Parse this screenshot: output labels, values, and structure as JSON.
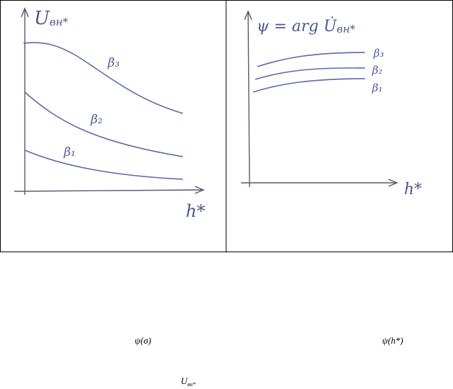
{
  "panels": [
    {
      "title": {
        "symbol": "U",
        "subscript": "вн*"
      },
      "curve_labels": [
        "β₃",
        "β₂",
        "β₁"
      ],
      "x_label": "h*"
    },
    {
      "title": {
        "symbol": "ψ = arg U̇",
        "subscript": "вн*"
      },
      "curve_labels": [
        "β₃",
        "β₂",
        "β₁"
      ],
      "x_label": "h*"
    }
  ],
  "text": {
    "formula_1": "ψ(σ)",
    "formula_2": "ψ(h*)",
    "formula_3": {
      "symbol": "U",
      "subscript": "вн*"
    }
  }
}
